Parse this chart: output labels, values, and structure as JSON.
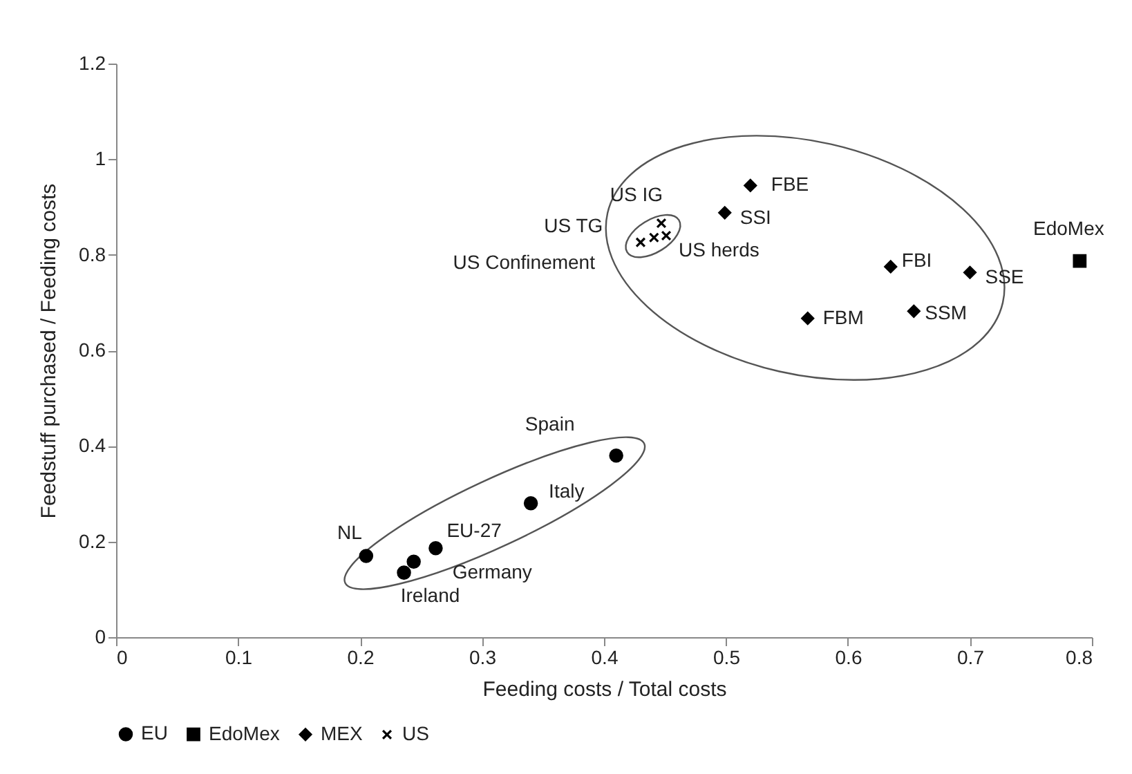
{
  "chart_data": {
    "type": "scatter",
    "xlabel": "Feeding costs / Total costs",
    "ylabel": "Feedstuff purchased / Feeding costs",
    "xlim": [
      0,
      0.8
    ],
    "xticks": [
      0,
      0.1,
      0.2,
      0.3,
      0.4,
      0.5,
      0.6,
      0.7,
      0.8
    ],
    "ylim": [
      0,
      1.2
    ],
    "yticks": [
      0,
      0.2,
      0.4,
      0.6,
      0.8,
      1,
      1.2
    ],
    "grid": false,
    "legend": "bottom",
    "series": [
      {
        "name": "EU",
        "color": "#000000",
        "marker": "circle",
        "x": [
          0.205,
          0.236,
          0.244,
          0.262,
          0.34,
          0.41
        ],
        "values": [
          0.17,
          0.135,
          0.158,
          0.186,
          0.28,
          0.38
        ]
      },
      {
        "name": "EdoMex",
        "color": "#000000",
        "marker": "square",
        "x": [
          0.79
        ],
        "values": [
          0.787
        ]
      },
      {
        "name": "MEX",
        "color": "#000000",
        "marker": "diamond",
        "x": [
          0.52,
          0.499,
          0.635,
          0.7,
          0.567,
          0.654
        ],
        "values": [
          0.945,
          0.888,
          0.775,
          0.763,
          0.667,
          0.682
        ]
      },
      {
        "name": "US",
        "color": "#000000",
        "marker": "cross",
        "x": [
          0.43,
          0.441,
          0.451,
          0.447
        ],
        "values": [
          0.826,
          0.836,
          0.84,
          0.866
        ]
      }
    ],
    "annotations": [
      {
        "text": "NL",
        "x": 0.205,
        "y": 0.17
      },
      {
        "text": "Ireland",
        "x": 0.236,
        "y": 0.135
      },
      {
        "text": "Germany",
        "x": 0.244,
        "y": 0.158
      },
      {
        "text": "EU-27",
        "x": 0.262,
        "y": 0.186
      },
      {
        "text": "Italy",
        "x": 0.34,
        "y": 0.28
      },
      {
        "text": "Spain",
        "x": 0.41,
        "y": 0.38
      },
      {
        "text": "EdoMex",
        "x": 0.79,
        "y": 0.787
      },
      {
        "text": "FBE",
        "x": 0.52,
        "y": 0.945
      },
      {
        "text": "SSI",
        "x": 0.499,
        "y": 0.888
      },
      {
        "text": "FBI",
        "x": 0.635,
        "y": 0.775
      },
      {
        "text": "SSE",
        "x": 0.7,
        "y": 0.763
      },
      {
        "text": "FBM",
        "x": 0.567,
        "y": 0.667
      },
      {
        "text": "SSM",
        "x": 0.654,
        "y": 0.682
      },
      {
        "text": "US Confinement",
        "x": 0.43,
        "y": 0.826
      },
      {
        "text": "US TG",
        "x": 0.441,
        "y": 0.836
      },
      {
        "text": "US herds",
        "x": 0.451,
        "y": 0.84
      },
      {
        "text": "US IG",
        "x": 0.447,
        "y": 0.866
      }
    ]
  }
}
